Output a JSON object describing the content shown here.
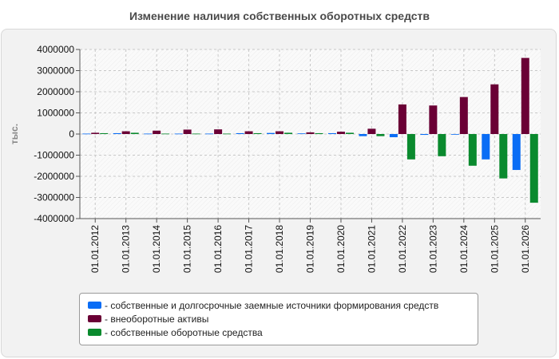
{
  "chart_data": {
    "type": "bar",
    "title": "Изменение наличия собственных оборотных средств",
    "ylabel": "тыс.",
    "xlabel": "",
    "ylim": [
      -4000000,
      4000000
    ],
    "yticks": [
      4000000,
      3000000,
      2000000,
      1000000,
      0,
      -1000000,
      -2000000,
      -3000000,
      -4000000
    ],
    "grid": true,
    "legend_position": "bottom",
    "categories": [
      "01.01.2012",
      "01.01.2013",
      "01.01.2014",
      "01.01.2015",
      "01.01.2016",
      "01.01.2017",
      "01.01.2018",
      "01.01.2019",
      "01.01.2020",
      "01.01.2021",
      "01.01.2022",
      "01.01.2023",
      "01.01.2024",
      "01.01.2025",
      "01.01.2026"
    ],
    "series": [
      {
        "name": "- собственные и долгосрочные заемные источники формирования средств",
        "color": "#0a6df5",
        "values": [
          20000,
          40000,
          20000,
          20000,
          20000,
          40000,
          50000,
          30000,
          40000,
          -100000,
          -150000,
          -40000,
          -20000,
          -1200000,
          -1700000
        ]
      },
      {
        "name": "- внеоборотные активы",
        "color": "#6a0035",
        "values": [
          60000,
          130000,
          160000,
          210000,
          220000,
          130000,
          130000,
          80000,
          110000,
          250000,
          1400000,
          1350000,
          1750000,
          2350000,
          3600000
        ]
      },
      {
        "name": "- собственные оборотные средства",
        "color": "#0a8a2e",
        "values": [
          40000,
          60000,
          20000,
          20000,
          20000,
          40000,
          60000,
          40000,
          60000,
          -100000,
          -1200000,
          -1050000,
          -1500000,
          -2100000,
          -3250000
        ]
      }
    ]
  }
}
